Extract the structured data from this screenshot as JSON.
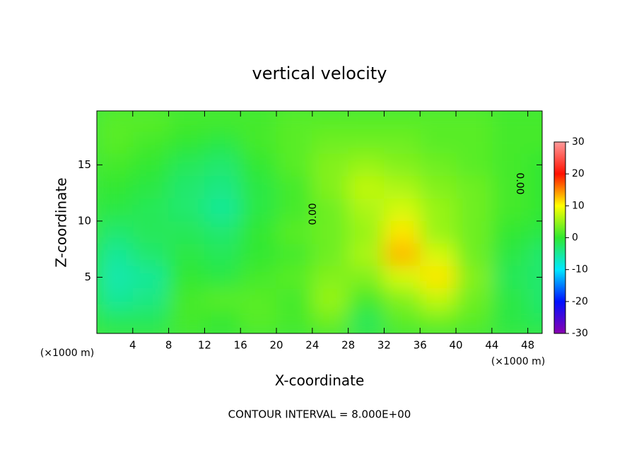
{
  "chart_data": {
    "type": "heatmap",
    "title": "vertical velocity",
    "x_label": "X-coordinate",
    "y_label": "Z-coordinate",
    "x_unit_left": "(×1000 m)",
    "x_unit_right": "(×1000 m)",
    "footer": "CONTOUR INTERVAL = 8.000E+00",
    "contour_labels": [
      "0.00",
      "0.00"
    ],
    "x": [
      2,
      6,
      10,
      14,
      18,
      22,
      26,
      30,
      34,
      38,
      42,
      46,
      50
    ],
    "z": [
      1,
      3,
      5,
      7,
      9,
      11,
      13,
      15,
      17,
      19
    ],
    "values": [
      [
        -2,
        -2,
        1,
        0,
        2,
        1,
        3,
        -2,
        2,
        3,
        2,
        -1,
        -2
      ],
      [
        -5,
        -4,
        1,
        2,
        2,
        1,
        5,
        1,
        4,
        7,
        3,
        -1,
        -3
      ],
      [
        -6,
        -5,
        0,
        -1,
        1,
        2,
        4,
        4,
        8,
        11,
        4,
        -2,
        -3
      ],
      [
        -5,
        -3,
        -1,
        -2,
        0,
        1,
        3,
        6,
        13,
        8,
        3,
        -1,
        -3
      ],
      [
        -3,
        -2,
        -2,
        -3,
        0,
        2,
        3,
        5,
        11,
        5,
        3,
        0,
        -1
      ],
      [
        -1,
        -2,
        -3,
        -5,
        -1,
        1,
        3,
        6,
        8,
        5,
        3,
        1,
        0
      ],
      [
        0,
        -1,
        -3,
        -4,
        -1,
        1,
        4,
        7,
        6,
        4,
        3,
        1,
        0
      ],
      [
        1,
        0,
        -2,
        -3,
        0,
        2,
        4,
        5,
        4,
        3,
        2,
        1,
        0
      ],
      [
        2,
        1,
        0,
        -1,
        1,
        2,
        3,
        3,
        3,
        2,
        2,
        1,
        1
      ],
      [
        2,
        2,
        1,
        1,
        1,
        2,
        2,
        2,
        2,
        2,
        2,
        1,
        1
      ]
    ],
    "xlim": [
      0,
      49.6
    ],
    "ylim": [
      0,
      19.8
    ],
    "xticks": [
      4,
      8,
      12,
      16,
      20,
      24,
      28,
      32,
      36,
      40,
      44,
      48
    ],
    "yticks": [
      5,
      10,
      15
    ],
    "clim": [
      -30,
      30
    ],
    "cticks": [
      -30,
      -20,
      -10,
      0,
      10,
      20,
      30
    ],
    "colormap": [
      "#8a00b0",
      "#0010ff",
      "#00e8ff",
      "#30e830",
      "#ffff00",
      "#ff1000",
      "#ff9a9a"
    ]
  }
}
